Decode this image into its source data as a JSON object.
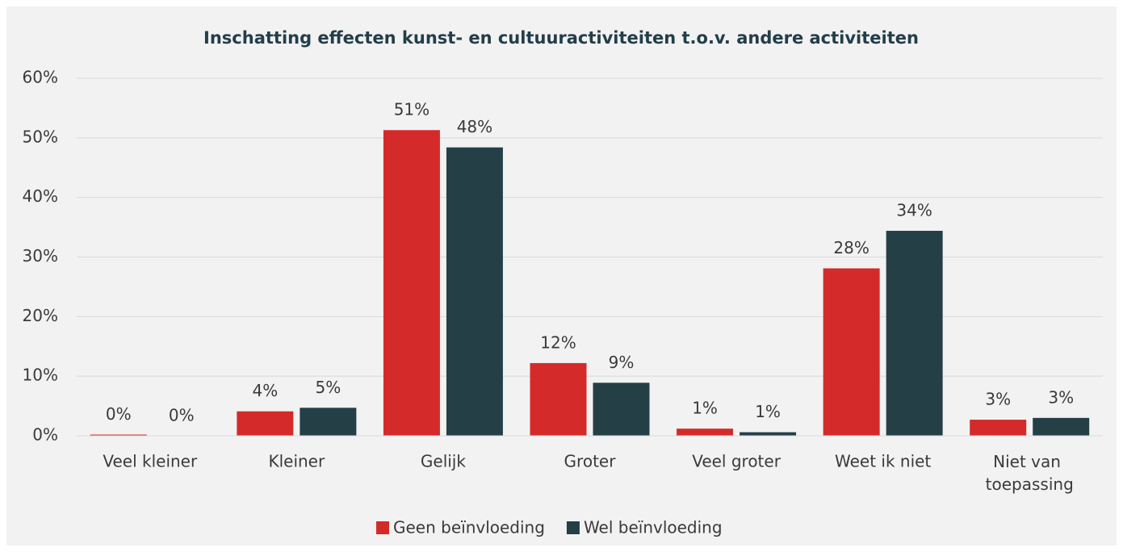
{
  "chart_data": {
    "type": "bar",
    "title": "Inschatting effecten kunst- en cultuuractiviteiten t.o.v. andere activiteiten",
    "categories": [
      "Veel kleiner",
      "Kleiner",
      "Gelijk",
      "Groter",
      "Veel groter",
      "Weet ik niet",
      "Niet van toepassing"
    ],
    "series": [
      {
        "name": "Geen beïnvloeding",
        "color": "#d42a2a",
        "values": [
          0.2,
          4.1,
          51.3,
          12.2,
          1.2,
          28.1,
          2.7
        ],
        "value_labels": [
          "0%",
          "4%",
          "51%",
          "12%",
          "1%",
          "28%",
          "3%"
        ]
      },
      {
        "name": "Wel beïnvloeding",
        "color": "#253f47",
        "values": [
          0,
          4.7,
          48.4,
          8.9,
          0.6,
          34.4,
          3.0
        ],
        "value_labels": [
          "0%",
          "5%",
          "48%",
          "9%",
          "1%",
          "34%",
          "3%"
        ]
      }
    ],
    "ylim": [
      0,
      60
    ],
    "yticks": [
      {
        "value": 0,
        "label": "0%"
      },
      {
        "value": 10,
        "label": "10%"
      },
      {
        "value": 20,
        "label": "20%"
      },
      {
        "value": 30,
        "label": "30%"
      },
      {
        "value": 40,
        "label": "40%"
      },
      {
        "value": 50,
        "label": "50%"
      },
      {
        "value": 60,
        "label": "60%"
      }
    ],
    "grid": true,
    "legend": "bottom"
  }
}
